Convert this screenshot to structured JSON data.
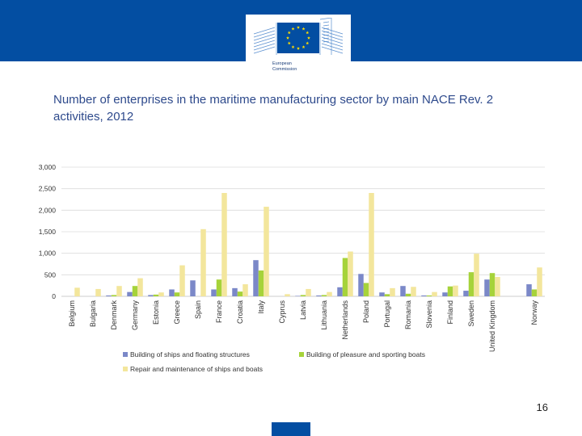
{
  "header": {
    "logo_line1": "European",
    "logo_line2": "Commission",
    "brand_color": "#034ea2",
    "star_color": "#ffdd00"
  },
  "slide": {
    "title": "Number of enterprises in the maritime manufacturing sector by main NACE Rev. 2 activities, 2012",
    "page_number": "16"
  },
  "chart_data": {
    "type": "bar",
    "title": "",
    "xlabel": "",
    "ylabel": "",
    "ylim": [
      0,
      3000
    ],
    "yticks": [
      0,
      500,
      1000,
      1500,
      2000,
      2500,
      3000
    ],
    "ytick_labels": [
      "0",
      "500",
      "1,000",
      "1,500",
      "2,000",
      "2,500",
      "3,000"
    ],
    "grid": true,
    "legend_position": "bottom",
    "categories": [
      "Belgium",
      "Bulgaria",
      "Denmark",
      "Germany",
      "Estonia",
      "Greece",
      "Spain",
      "France",
      "Croatia",
      "Italy",
      "Cyprus",
      "Latvia",
      "Lithuania",
      "Netherlands",
      "Poland",
      "Portugal",
      "Romania",
      "Slovenia",
      "Finland",
      "Sweden",
      "United Kingdom",
      "",
      "Norway"
    ],
    "series": [
      {
        "name": "Building of ships and floating structures",
        "color": "#7b88c8",
        "values": [
          0,
          0,
          20,
          100,
          30,
          160,
          370,
          160,
          190,
          840,
          0,
          10,
          20,
          210,
          520,
          90,
          240,
          20,
          90,
          130,
          390,
          null,
          280
        ]
      },
      {
        "name": "Building of pleasure and sporting boats",
        "color": "#a6d33a",
        "values": [
          0,
          0,
          30,
          240,
          40,
          90,
          0,
          390,
          110,
          600,
          0,
          30,
          30,
          890,
          310,
          50,
          60,
          20,
          230,
          560,
          540,
          null,
          160
        ]
      },
      {
        "name": "Repair and maintenance of ships and boats",
        "color": "#f3e69c",
        "values": [
          200,
          170,
          240,
          420,
          90,
          720,
          1560,
          2400,
          280,
          2080,
          50,
          170,
          100,
          1040,
          2400,
          190,
          220,
          100,
          250,
          990,
          450,
          null,
          670
        ]
      }
    ]
  }
}
